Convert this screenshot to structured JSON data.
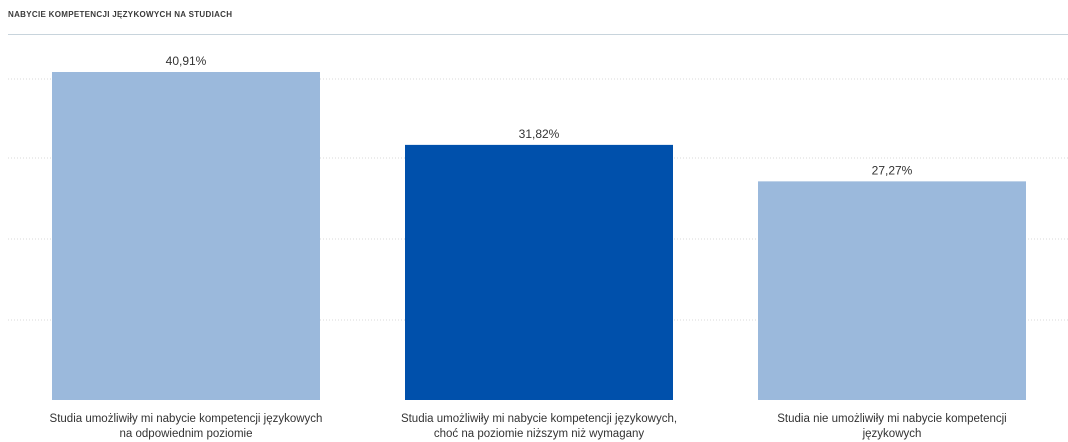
{
  "chart_data": {
    "type": "bar",
    "title": "NABYCIE KOMPETENCJI JĘZYKOWYCH NA STUDIACH",
    "categories": [
      [
        "Studia umożliwiły mi nabycie kompetencji językowych",
        "na odpowiednim poziomie"
      ],
      [
        "Studia umożliwiły mi nabycie kompetencji językowych,",
        "choć na poziomie niższym niż wymagany"
      ],
      [
        "Studia nie umożliwiły mi nabycie kompetencji",
        "językowych"
      ]
    ],
    "values": [
      40.91,
      31.82,
      27.27
    ],
    "value_labels": [
      "40,91%",
      "31,82%",
      "27,27%"
    ],
    "bar_colors": [
      "#9bb9dc",
      "#0050ab",
      "#9bb9dc"
    ],
    "ylim": [
      0,
      40.91
    ],
    "grid": true,
    "xlabel": "",
    "ylabel": ""
  }
}
